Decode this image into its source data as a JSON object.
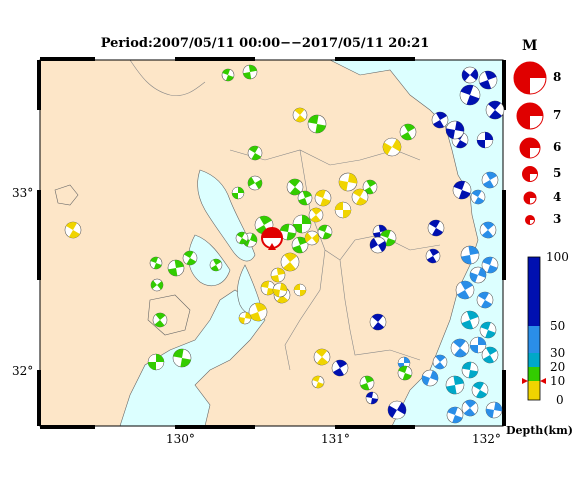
{
  "title": "Period:2007/05/11 00:00−−2017/05/11 20:21",
  "axes": {
    "x_ticks": [
      "130°",
      "131°",
      "132°"
    ],
    "y_ticks": [
      "33°",
      "32°"
    ]
  },
  "magnitude_legend": {
    "header": "M",
    "levels": [
      "8",
      "7",
      "6",
      "5",
      "4",
      "3"
    ]
  },
  "depth_legend": {
    "title": "Depth(km)",
    "ticks": [
      "100",
      "50",
      "30",
      "20",
      "10",
      "0"
    ]
  },
  "colors": {
    "sea": "#dcffff",
    "land": "#fde6c8",
    "shallow": "#f0d400",
    "mid_shallow": "#33cc00",
    "medium": "#00a8c8",
    "deep_medium": "#2a8ee8",
    "deep": "#0010b0",
    "highlight": "#e00000"
  },
  "main_event_marker": "red-triangle"
}
